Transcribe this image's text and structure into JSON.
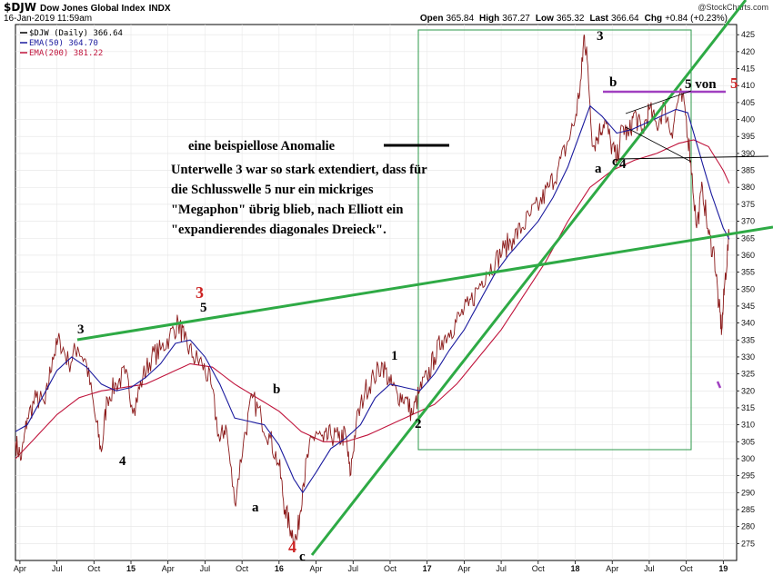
{
  "header": {
    "symbol": "$DJW",
    "name": "Dow Jones Global Index",
    "exchange": "INDX",
    "datetime": "16-Jan-2019 11:59am",
    "watermark": "@StockCharts.com",
    "quote": {
      "open_label": "Open",
      "open": "365.84",
      "high_label": "High",
      "high": "367.27",
      "low_label": "Low",
      "low": "365.32",
      "last_label": "Last",
      "last": "366.64",
      "chg_label": "Chg",
      "chg": "+0.84 (+0.23%)"
    }
  },
  "legend": [
    {
      "label": "$DJW (Daily) 366.64",
      "color": "#000000"
    },
    {
      "label": "EMA(50) 364.70",
      "color": "#1a1a9e"
    },
    {
      "label": "EMA(200) 381.22",
      "color": "#c0143c"
    }
  ],
  "annotation": {
    "title": "eine beispiellose Anomalie",
    "lines": [
      "Unterwelle 3 war so stark extendiert, dass für",
      "die Schlusswelle 5 nur ein mickriges",
      "\"Megaphon\" übrig blieb, nach Elliott ein",
      "\"expandierendes diagonales Dreieck\"."
    ]
  },
  "wave_labels": [
    {
      "text": "3",
      "color": "#000000"
    },
    {
      "text": "4",
      "color": "#000000"
    },
    {
      "text": "3",
      "color": "#cc2222"
    },
    {
      "text": "5",
      "color": "#000000"
    },
    {
      "text": "a",
      "color": "#000000"
    },
    {
      "text": "b",
      "color": "#000000"
    },
    {
      "text": "4",
      "color": "#cc2222"
    },
    {
      "text": "c",
      "color": "#000000"
    },
    {
      "text": "1",
      "color": "#000000"
    },
    {
      "text": "2",
      "color": "#000000"
    },
    {
      "text": "3",
      "color": "#000000"
    },
    {
      "text": "b",
      "color": "#000000"
    },
    {
      "text": "a",
      "color": "#000000"
    },
    {
      "text": "c",
      "color": "#000000"
    },
    {
      "text": "4",
      "color": "#000000"
    },
    {
      "text": "5 von",
      "color": "#000000"
    },
    {
      "text": "5",
      "color": "#cc2222"
    }
  ],
  "chart_data": {
    "type": "line",
    "title": "$DJW Dow Jones Global Index INDX",
    "xlabel": "",
    "ylabel": "",
    "ylim": [
      270,
      428
    ],
    "yticks": [
      275,
      280,
      285,
      290,
      295,
      300,
      305,
      310,
      315,
      320,
      325,
      330,
      335,
      340,
      345,
      350,
      355,
      360,
      365,
      370,
      375,
      380,
      385,
      390,
      395,
      400,
      405,
      410,
      415,
      420,
      425
    ],
    "x_range": [
      2014.22,
      2019.09
    ],
    "xticks": [
      {
        "label": "Apr",
        "t": 2014.25,
        "bold": false
      },
      {
        "label": "Jul",
        "t": 2014.5,
        "bold": false
      },
      {
        "label": "Oct",
        "t": 2014.75,
        "bold": false
      },
      {
        "label": "15",
        "t": 2015.0,
        "bold": true
      },
      {
        "label": "Apr",
        "t": 2015.25,
        "bold": false
      },
      {
        "label": "Jul",
        "t": 2015.5,
        "bold": false
      },
      {
        "label": "Oct",
        "t": 2015.75,
        "bold": false
      },
      {
        "label": "16",
        "t": 2016.0,
        "bold": true
      },
      {
        "label": "Apr",
        "t": 2016.25,
        "bold": false
      },
      {
        "label": "Jul",
        "t": 2016.5,
        "bold": false
      },
      {
        "label": "Oct",
        "t": 2016.75,
        "bold": false
      },
      {
        "label": "17",
        "t": 2017.0,
        "bold": true
      },
      {
        "label": "Apr",
        "t": 2017.25,
        "bold": false
      },
      {
        "label": "Jul",
        "t": 2017.5,
        "bold": false
      },
      {
        "label": "Oct",
        "t": 2017.75,
        "bold": false
      },
      {
        "label": "18",
        "t": 2018.0,
        "bold": true
      },
      {
        "label": "Apr",
        "t": 2018.25,
        "bold": false
      },
      {
        "label": "Jul",
        "t": 2018.5,
        "bold": false
      },
      {
        "label": "Oct",
        "t": 2018.75,
        "bold": false
      },
      {
        "label": "19",
        "t": 2019.0,
        "bold": true
      }
    ],
    "series": [
      {
        "name": "$DJW (Daily)",
        "color": "#8b1a1a",
        "points": [
          [
            2014.22,
            305
          ],
          [
            2014.26,
            300
          ],
          [
            2014.3,
            312
          ],
          [
            2014.36,
            318
          ],
          [
            2014.42,
            316
          ],
          [
            2014.47,
            330
          ],
          [
            2014.52,
            335
          ],
          [
            2014.58,
            328
          ],
          [
            2014.64,
            333
          ],
          [
            2014.7,
            328
          ],
          [
            2014.76,
            312
          ],
          [
            2014.8,
            302
          ],
          [
            2014.84,
            318
          ],
          [
            2014.9,
            322
          ],
          [
            2014.96,
            325
          ],
          [
            2015.02,
            315
          ],
          [
            2015.08,
            324
          ],
          [
            2015.14,
            330
          ],
          [
            2015.2,
            332
          ],
          [
            2015.26,
            336
          ],
          [
            2015.32,
            340
          ],
          [
            2015.36,
            335
          ],
          [
            2015.42,
            330
          ],
          [
            2015.48,
            328
          ],
          [
            2015.54,
            322
          ],
          [
            2015.6,
            305
          ],
          [
            2015.64,
            310
          ],
          [
            2015.7,
            287
          ],
          [
            2015.76,
            305
          ],
          [
            2015.82,
            318
          ],
          [
            2015.88,
            312
          ],
          [
            2015.94,
            306
          ],
          [
            2016.0,
            298
          ],
          [
            2016.04,
            285
          ],
          [
            2016.08,
            279
          ],
          [
            2016.12,
            276
          ],
          [
            2016.16,
            292
          ],
          [
            2016.2,
            302
          ],
          [
            2016.25,
            308
          ],
          [
            2016.3,
            305
          ],
          [
            2016.35,
            307
          ],
          [
            2016.4,
            306
          ],
          [
            2016.45,
            307
          ],
          [
            2016.48,
            295
          ],
          [
            2016.52,
            310
          ],
          [
            2016.58,
            320
          ],
          [
            2016.64,
            324
          ],
          [
            2016.7,
            328
          ],
          [
            2016.75,
            322
          ],
          [
            2016.8,
            319
          ],
          [
            2016.85,
            318
          ],
          [
            2016.9,
            313
          ],
          [
            2016.95,
            320
          ],
          [
            2017.0,
            324
          ],
          [
            2017.05,
            330
          ],
          [
            2017.1,
            335
          ],
          [
            2017.16,
            338
          ],
          [
            2017.22,
            342
          ],
          [
            2017.28,
            345
          ],
          [
            2017.34,
            350
          ],
          [
            2017.4,
            355
          ],
          [
            2017.46,
            358
          ],
          [
            2017.52,
            362
          ],
          [
            2017.58,
            365
          ],
          [
            2017.64,
            368
          ],
          [
            2017.7,
            372
          ],
          [
            2017.76,
            375
          ],
          [
            2017.82,
            380
          ],
          [
            2017.88,
            385
          ],
          [
            2017.94,
            392
          ],
          [
            2018.0,
            400
          ],
          [
            2018.04,
            412
          ],
          [
            2018.06,
            425
          ],
          [
            2018.08,
            418
          ],
          [
            2018.12,
            392
          ],
          [
            2018.16,
            396
          ],
          [
            2018.2,
            400
          ],
          [
            2018.24,
            393
          ],
          [
            2018.28,
            388
          ],
          [
            2018.32,
            398
          ],
          [
            2018.36,
            395
          ],
          [
            2018.4,
            402
          ],
          [
            2018.45,
            396
          ],
          [
            2018.5,
            403
          ],
          [
            2018.55,
            398
          ],
          [
            2018.6,
            404
          ],
          [
            2018.65,
            396
          ],
          [
            2018.7,
            407
          ],
          [
            2018.74,
            404
          ],
          [
            2018.78,
            388
          ],
          [
            2018.82,
            368
          ],
          [
            2018.86,
            380
          ],
          [
            2018.9,
            366
          ],
          [
            2018.94,
            360
          ],
          [
            2018.97,
            345
          ],
          [
            2018.99,
            338
          ],
          [
            2019.01,
            352
          ],
          [
            2019.04,
            366
          ]
        ]
      },
      {
        "name": "EMA(50)",
        "color": "#1a1a9e",
        "points": [
          [
            2014.22,
            308
          ],
          [
            2014.3,
            310
          ],
          [
            2014.4,
            318
          ],
          [
            2014.5,
            326
          ],
          [
            2014.6,
            330
          ],
          [
            2014.7,
            327
          ],
          [
            2014.8,
            322
          ],
          [
            2014.9,
            320
          ],
          [
            2015.0,
            321
          ],
          [
            2015.1,
            324
          ],
          [
            2015.2,
            328
          ],
          [
            2015.3,
            334
          ],
          [
            2015.4,
            335
          ],
          [
            2015.5,
            330
          ],
          [
            2015.6,
            322
          ],
          [
            2015.7,
            312
          ],
          [
            2015.8,
            311
          ],
          [
            2015.9,
            310
          ],
          [
            2016.0,
            304
          ],
          [
            2016.1,
            294
          ],
          [
            2016.16,
            290
          ],
          [
            2016.25,
            296
          ],
          [
            2016.35,
            303
          ],
          [
            2016.45,
            306
          ],
          [
            2016.55,
            310
          ],
          [
            2016.65,
            318
          ],
          [
            2016.75,
            322
          ],
          [
            2016.85,
            321
          ],
          [
            2016.95,
            320
          ],
          [
            2017.05,
            325
          ],
          [
            2017.15,
            332
          ],
          [
            2017.25,
            338
          ],
          [
            2017.35,
            346
          ],
          [
            2017.45,
            354
          ],
          [
            2017.55,
            360
          ],
          [
            2017.65,
            365
          ],
          [
            2017.75,
            370
          ],
          [
            2017.85,
            377
          ],
          [
            2017.95,
            386
          ],
          [
            2018.05,
            398
          ],
          [
            2018.1,
            404
          ],
          [
            2018.18,
            401
          ],
          [
            2018.28,
            396
          ],
          [
            2018.38,
            397
          ],
          [
            2018.48,
            399
          ],
          [
            2018.58,
            401
          ],
          [
            2018.68,
            403
          ],
          [
            2018.76,
            402
          ],
          [
            2018.84,
            390
          ],
          [
            2018.92,
            378
          ],
          [
            2019.0,
            368
          ],
          [
            2019.04,
            364.7
          ]
        ]
      },
      {
        "name": "EMA(200)",
        "color": "#c0143c",
        "points": [
          [
            2014.22,
            300
          ],
          [
            2014.35,
            306
          ],
          [
            2014.5,
            313
          ],
          [
            2014.65,
            318
          ],
          [
            2014.8,
            320
          ],
          [
            2014.95,
            321
          ],
          [
            2015.1,
            322
          ],
          [
            2015.25,
            325
          ],
          [
            2015.4,
            328
          ],
          [
            2015.55,
            327
          ],
          [
            2015.7,
            322
          ],
          [
            2015.85,
            318
          ],
          [
            2016.0,
            314
          ],
          [
            2016.15,
            308
          ],
          [
            2016.3,
            305
          ],
          [
            2016.45,
            305
          ],
          [
            2016.6,
            307
          ],
          [
            2016.75,
            310
          ],
          [
            2016.9,
            313
          ],
          [
            2017.05,
            316
          ],
          [
            2017.2,
            322
          ],
          [
            2017.35,
            330
          ],
          [
            2017.5,
            338
          ],
          [
            2017.65,
            348
          ],
          [
            2017.8,
            358
          ],
          [
            2017.95,
            370
          ],
          [
            2018.1,
            380
          ],
          [
            2018.25,
            385
          ],
          [
            2018.4,
            388
          ],
          [
            2018.55,
            390
          ],
          [
            2018.7,
            393
          ],
          [
            2018.8,
            394
          ],
          [
            2018.9,
            392
          ],
          [
            2019.0,
            385
          ],
          [
            2019.04,
            381.2
          ]
        ]
      }
    ]
  }
}
